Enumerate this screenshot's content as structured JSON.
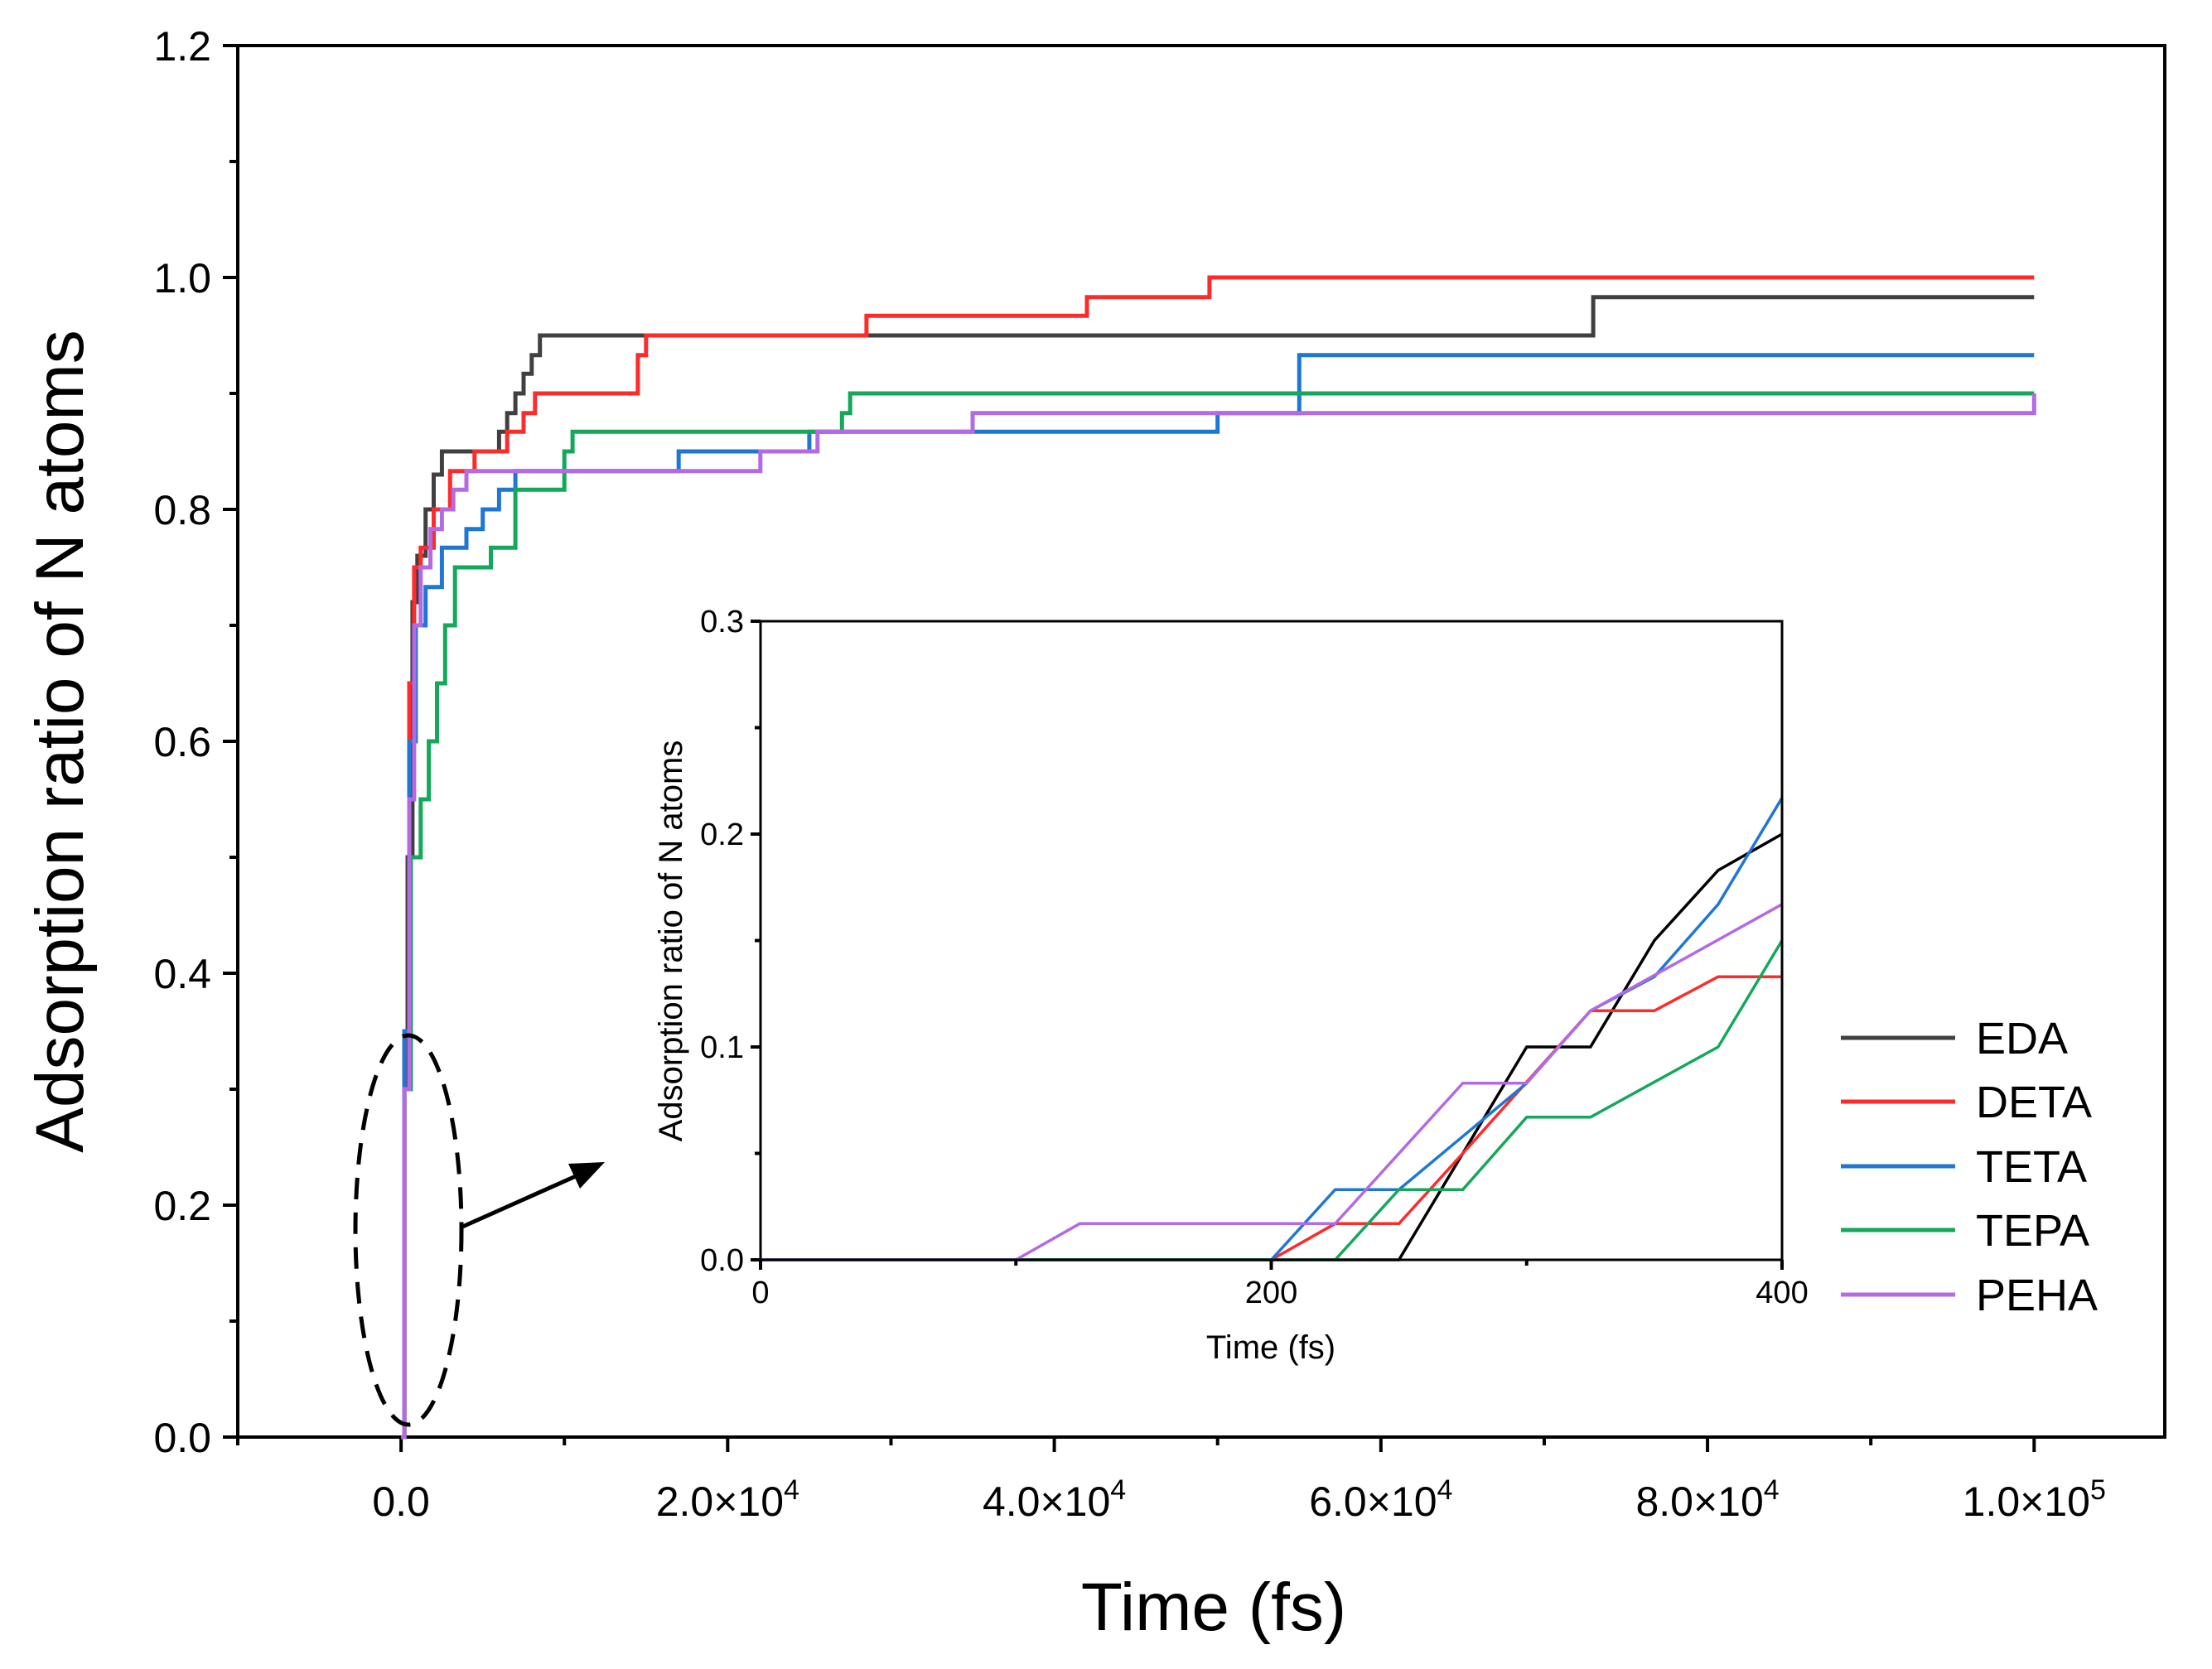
{
  "colors": {
    "EDA": "#404040",
    "DETA": "#ff2a2a",
    "TETA": "#1f77d4",
    "TEPA": "#14a85a",
    "PEHA": "#b36ae2",
    "EDA_inset": "#000000"
  },
  "legend": [
    "EDA",
    "DETA",
    "TETA",
    "TEPA",
    "PEHA"
  ],
  "chart_data": [
    {
      "type": "line",
      "title": "",
      "xlabel": "Time (fs)",
      "ylabel": "Adsorption ratio of N atoms",
      "xlim": [
        -10000,
        108000
      ],
      "ylim": [
        0,
        1.2
      ],
      "xticks": [
        0,
        20000,
        40000,
        60000,
        80000,
        100000
      ],
      "xtick_labels": [
        {
          "mant": "0.0",
          "exp": ""
        },
        {
          "mant": "2.0×10",
          "exp": "4"
        },
        {
          "mant": "4.0×10",
          "exp": "4"
        },
        {
          "mant": "6.0×10",
          "exp": "4"
        },
        {
          "mant": "8.0×10",
          "exp": "4"
        },
        {
          "mant": "1.0×10",
          "exp": "5"
        }
      ],
      "yticks": [
        0,
        0.2,
        0.4,
        0.6,
        0.8,
        1.0,
        1.2
      ],
      "ytick_labels": [
        "0.0",
        "0.2",
        "0.4",
        "0.6",
        "0.8",
        "1.0",
        "1.2"
      ],
      "step": true,
      "series": [
        {
          "name": "EDA",
          "x": [
            0,
            200,
            400,
            700,
            1000,
            1500,
            2000,
            2500,
            6000,
            6500,
            7000,
            7500,
            8000,
            8500,
            73000,
            100000
          ],
          "y": [
            0,
            0.3,
            0.5,
            0.72,
            0.76,
            0.8,
            0.83,
            0.85,
            0.867,
            0.883,
            0.9,
            0.917,
            0.933,
            0.95,
            0.983,
            0.983
          ]
        },
        {
          "name": "DETA",
          "x": [
            0,
            200,
            500,
            800,
            1200,
            2000,
            3000,
            4500,
            6500,
            7500,
            8200,
            14500,
            15000,
            28500,
            42000,
            49500,
            100000
          ],
          "y": [
            0,
            0.35,
            0.65,
            0.75,
            0.767,
            0.8,
            0.833,
            0.85,
            0.867,
            0.883,
            0.9,
            0.933,
            0.95,
            0.967,
            0.983,
            1.0,
            1.0
          ]
        },
        {
          "name": "TETA",
          "x": [
            0,
            200,
            500,
            900,
            1500,
            2500,
            4000,
            5000,
            6000,
            7000,
            17000,
            25000,
            50000,
            55000,
            100000
          ],
          "y": [
            0,
            0.35,
            0.6,
            0.7,
            0.733,
            0.767,
            0.783,
            0.8,
            0.817,
            0.833,
            0.85,
            0.867,
            0.883,
            0.933,
            0.933
          ]
        },
        {
          "name": "TEPA",
          "x": [
            0,
            200,
            600,
            1200,
            1700,
            2200,
            2700,
            3300,
            5500,
            7000,
            10000,
            10500,
            27000,
            27500,
            35000,
            100000
          ],
          "y": [
            0,
            0.3,
            0.5,
            0.55,
            0.6,
            0.65,
            0.7,
            0.75,
            0.767,
            0.817,
            0.85,
            0.867,
            0.883,
            0.9,
            0.9,
            0.9
          ]
        },
        {
          "name": "PEHA",
          "x": [
            0,
            200,
            500,
            800,
            1200,
            1800,
            2500,
            3200,
            4000,
            22000,
            25500,
            35000,
            100000
          ],
          "y": [
            0,
            0.3,
            0.55,
            0.7,
            0.75,
            0.783,
            0.8,
            0.817,
            0.833,
            0.85,
            0.867,
            0.883,
            0.9
          ]
        }
      ],
      "annotation": "dashed ellipse around early-time region with arrow pointing to inset"
    },
    {
      "type": "line",
      "title": "",
      "xlabel": "Time (fs)",
      "ylabel": "Adsorption ratio of N atoms",
      "xlim": [
        0,
        400
      ],
      "ylim": [
        0,
        0.3
      ],
      "xticks": [
        0,
        200,
        400
      ],
      "xtick_labels": [
        "0",
        "200",
        "400"
      ],
      "yticks": [
        0,
        0.1,
        0.2,
        0.3
      ],
      "ytick_labels": [
        "0.0",
        "0.1",
        "0.2",
        "0.3"
      ],
      "series": [
        {
          "name": "EDA",
          "x": [
            0,
            250,
            300,
            325,
            350,
            375,
            400
          ],
          "y": [
            0,
            0,
            0.1,
            0.1,
            0.15,
            0.183,
            0.2
          ]
        },
        {
          "name": "DETA",
          "x": [
            0,
            200,
            225,
            250,
            275,
            325,
            350,
            375,
            400
          ],
          "y": [
            0,
            0,
            0.017,
            0.017,
            0.05,
            0.117,
            0.117,
            0.133,
            0.133
          ]
        },
        {
          "name": "TETA",
          "x": [
            0,
            200,
            225,
            250,
            300,
            325,
            350,
            375,
            400
          ],
          "y": [
            0,
            0,
            0.033,
            0.033,
            0.083,
            0.117,
            0.133,
            0.167,
            0.217
          ]
        },
        {
          "name": "TEPA",
          "x": [
            0,
            225,
            250,
            275,
            300,
            325,
            375,
            400
          ],
          "y": [
            0,
            0,
            0.033,
            0.033,
            0.067,
            0.067,
            0.1,
            0.15
          ]
        },
        {
          "name": "PEHA",
          "x": [
            0,
            100,
            125,
            225,
            275,
            300,
            325,
            400
          ],
          "y": [
            0,
            0,
            0.017,
            0.017,
            0.083,
            0.083,
            0.117,
            0.167
          ]
        }
      ]
    }
  ]
}
